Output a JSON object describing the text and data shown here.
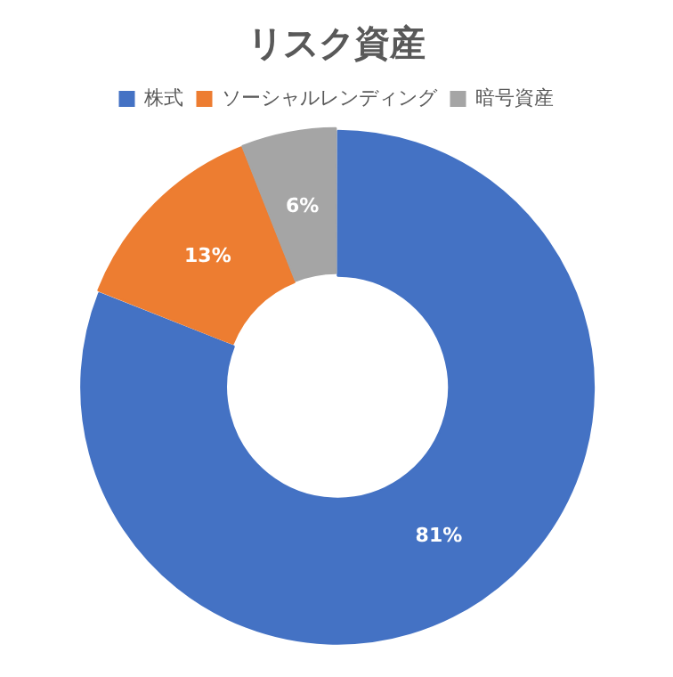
{
  "chart_data": {
    "type": "donut",
    "title": "リスク資産",
    "categories": [
      "株式",
      "ソーシャルレンディング",
      "暗号資産"
    ],
    "values": [
      81,
      13,
      6
    ],
    "colors": [
      "#4472c4",
      "#ed7d31",
      "#a5a5a5"
    ],
    "value_labels": [
      "81%",
      "13%",
      "6%"
    ],
    "legend": "top"
  }
}
